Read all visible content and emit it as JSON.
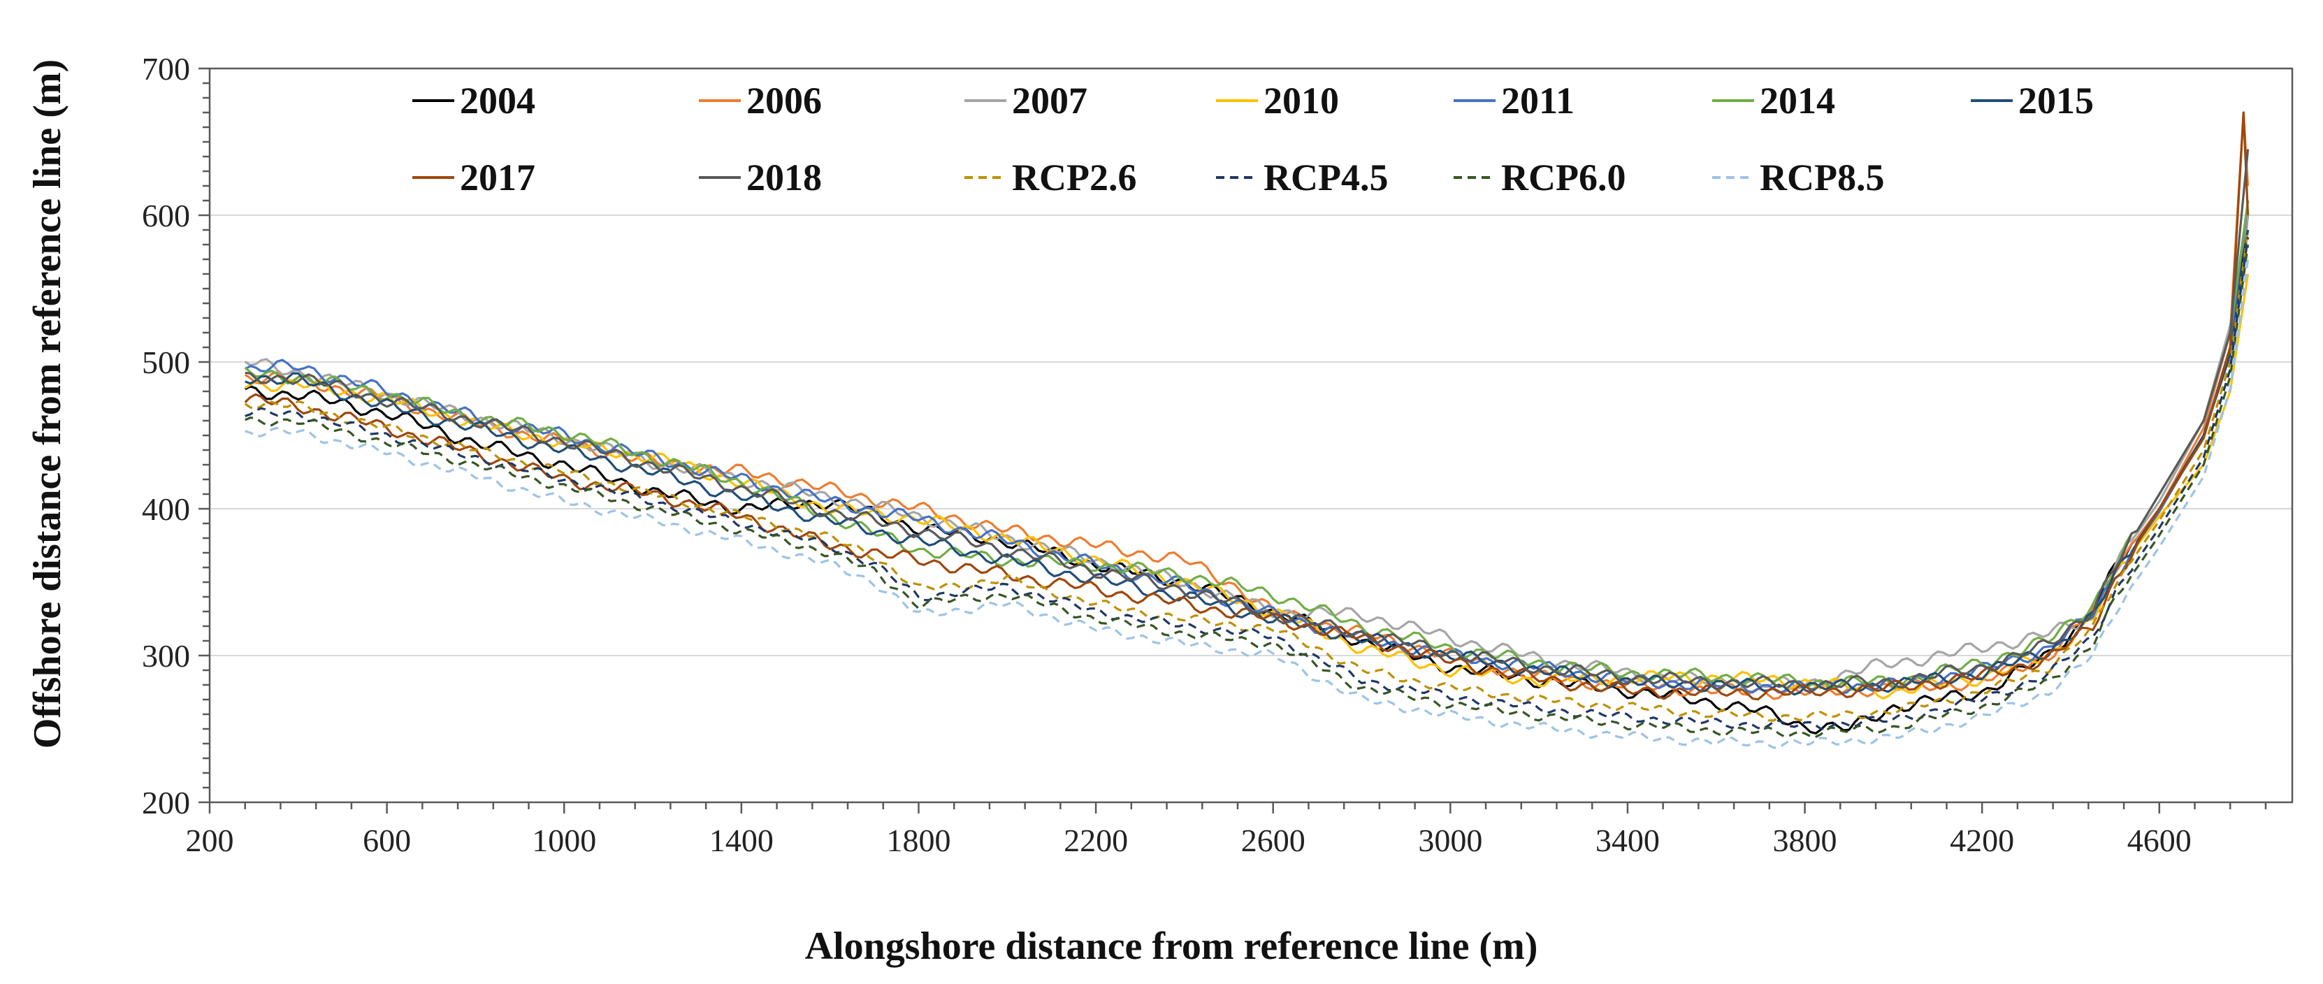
{
  "chart_data": {
    "type": "line",
    "title": "",
    "xlabel": "Alongshore distance from reference line (m)",
    "ylabel": "Offshore distance from reference line (m)",
    "xlim": [
      200,
      4900
    ],
    "ylim": [
      200,
      700
    ],
    "xticks": [
      200,
      600,
      1000,
      1400,
      1800,
      2200,
      2600,
      3000,
      3400,
      3800,
      4200,
      4600
    ],
    "yticks": [
      200,
      300,
      400,
      500,
      600,
      700
    ],
    "grid": "horizontal",
    "legend_position": "top, inside plot",
    "series": [
      {
        "name": "2004",
        "color": "#000000",
        "dash": "solid",
        "x": [
          280,
          400,
          600,
          800,
          1000,
          1200,
          1400,
          1600,
          1800,
          2000,
          2200,
          2400,
          2600,
          2800,
          3000,
          3200,
          3400,
          3600,
          3700,
          3800,
          3900,
          4000,
          4200,
          4350,
          4450,
          4500,
          4600,
          4700,
          4760,
          4800
        ],
        "y": [
          480,
          478,
          465,
          445,
          430,
          412,
          400,
          405,
          387,
          378,
          362,
          350,
          330,
          310,
          292,
          283,
          276,
          268,
          262,
          252,
          250,
          265,
          275,
          300,
          330,
          360,
          400,
          450,
          510,
          600
        ]
      },
      {
        "name": "2006",
        "color": "#ED7D31",
        "dash": "solid",
        "x": [
          280,
          400,
          600,
          800,
          1000,
          1200,
          1400,
          1500,
          1600,
          1800,
          2000,
          2200,
          2400,
          2500,
          2600,
          2800,
          3000,
          3200,
          3400,
          3600,
          3800,
          4000,
          4200,
          4350,
          4450,
          4500,
          4600,
          4700,
          4760,
          4790,
          4800
        ],
        "y": [
          490,
          488,
          475,
          458,
          445,
          432,
          425,
          420,
          413,
          400,
          385,
          375,
          365,
          350,
          330,
          315,
          300,
          285,
          280,
          276,
          275,
          278,
          282,
          300,
          330,
          360,
          400,
          455,
          520,
          670,
          620
        ]
      },
      {
        "name": "2007",
        "color": "#A5A5A5",
        "dash": "solid",
        "x": [
          280,
          400,
          600,
          800,
          1000,
          1200,
          1400,
          1600,
          1800,
          2000,
          2200,
          2400,
          2600,
          2800,
          3000,
          3200,
          3400,
          3600,
          3800,
          3950,
          4100,
          4200,
          4350,
          4450,
          4500,
          4600,
          4700,
          4760,
          4800
        ],
        "y": [
          500,
          493,
          478,
          462,
          448,
          432,
          420,
          408,
          395,
          380,
          365,
          350,
          330,
          328,
          312,
          298,
          288,
          282,
          280,
          292,
          300,
          305,
          315,
          325,
          362,
          405,
          460,
          525,
          600
        ]
      },
      {
        "name": "2010",
        "color": "#FFC000",
        "dash": "solid",
        "x": [
          280,
          400,
          600,
          800,
          1000,
          1200,
          1400,
          1600,
          1800,
          2000,
          2200,
          2400,
          2600,
          2800,
          3000,
          3200,
          3400,
          3600,
          3800,
          4000,
          4200,
          4350,
          4450,
          4500,
          4600,
          4700,
          4760,
          4800
        ],
        "y": [
          485,
          485,
          475,
          458,
          445,
          435,
          418,
          400,
          393,
          380,
          365,
          350,
          330,
          305,
          290,
          283,
          285,
          285,
          282,
          275,
          285,
          300,
          325,
          355,
          395,
          430,
          480,
          560
        ]
      },
      {
        "name": "2011",
        "color": "#4472C4",
        "dash": "solid",
        "x": [
          280,
          400,
          600,
          800,
          1000,
          1200,
          1400,
          1600,
          1800,
          2000,
          2200,
          2400,
          2600,
          2800,
          3000,
          3200,
          3400,
          3600,
          3800,
          4000,
          4200,
          4350,
          4450,
          4500,
          4600,
          4700,
          4760,
          4800
        ],
        "y": [
          495,
          497,
          480,
          462,
          450,
          435,
          420,
          405,
          393,
          378,
          362,
          348,
          328,
          312,
          300,
          292,
          283,
          280,
          278,
          280,
          290,
          305,
          328,
          355,
          398,
          450,
          510,
          610
        ]
      },
      {
        "name": "2014",
        "color": "#70AD47",
        "dash": "solid",
        "x": [
          280,
          400,
          600,
          800,
          1000,
          1200,
          1400,
          1600,
          1800,
          2000,
          2200,
          2400,
          2600,
          2800,
          3000,
          3200,
          3400,
          3600,
          3800,
          4000,
          4200,
          4350,
          4450,
          4500,
          4600,
          4700,
          4760,
          4800
        ],
        "y": [
          492,
          490,
          478,
          462,
          452,
          435,
          418,
          395,
          372,
          365,
          362,
          355,
          342,
          320,
          305,
          295,
          288,
          286,
          282,
          282,
          295,
          310,
          335,
          360,
          410,
          460,
          520,
          610
        ]
      },
      {
        "name": "2015",
        "color": "#1F4E79",
        "dash": "solid",
        "x": [
          280,
          400,
          600,
          800,
          1000,
          1200,
          1400,
          1600,
          1800,
          2000,
          2200,
          2400,
          2600,
          2800,
          3000,
          3200,
          3400,
          3600,
          3800,
          4000,
          4200,
          4350,
          4450,
          4500,
          4600,
          4700,
          4760,
          4800
        ],
        "y": [
          490,
          488,
          470,
          455,
          440,
          425,
          408,
          392,
          378,
          365,
          352,
          340,
          325,
          312,
          300,
          290,
          282,
          280,
          278,
          280,
          288,
          303,
          326,
          355,
          400,
          450,
          505,
          590
        ]
      },
      {
        "name": "2017",
        "color": "#9E480E",
        "dash": "solid",
        "x": [
          280,
          400,
          600,
          800,
          1000,
          1200,
          1400,
          1600,
          1800,
          2000,
          2200,
          2400,
          2600,
          2800,
          3000,
          3200,
          3400,
          3600,
          3800,
          4000,
          4200,
          4350,
          4450,
          4500,
          4600,
          4700,
          4760,
          4790,
          4800
        ],
        "y": [
          475,
          470,
          455,
          438,
          420,
          410,
          395,
          375,
          365,
          355,
          345,
          335,
          325,
          312,
          296,
          284,
          276,
          275,
          275,
          278,
          286,
          298,
          320,
          352,
          400,
          448,
          510,
          670,
          600
        ]
      },
      {
        "name": "2018",
        "color": "#595959",
        "dash": "solid",
        "x": [
          280,
          400,
          600,
          800,
          1000,
          1200,
          1400,
          1600,
          1800,
          2000,
          2200,
          2400,
          2600,
          2800,
          3000,
          3200,
          3400,
          3600,
          3800,
          4000,
          4200,
          4350,
          4450,
          4500,
          4600,
          4700,
          4760,
          4800
        ],
        "y": [
          488,
          490,
          474,
          460,
          446,
          430,
          414,
          398,
          385,
          372,
          358,
          345,
          328,
          315,
          302,
          292,
          285,
          282,
          280,
          282,
          292,
          307,
          332,
          360,
          410,
          460,
          520,
          645
        ]
      },
      {
        "name": "RCP2.6",
        "color": "#BF9000",
        "dash": "dashed",
        "x": [
          280,
          400,
          600,
          800,
          1000,
          1200,
          1400,
          1600,
          1700,
          1800,
          2000,
          2200,
          2400,
          2600,
          2700,
          2800,
          3000,
          3200,
          3400,
          3600,
          3800,
          4000,
          4200,
          4350,
          4450,
          4500,
          4600,
          4700,
          4760,
          4800
        ],
        "y": [
          472,
          470,
          455,
          440,
          425,
          410,
          395,
          380,
          368,
          345,
          352,
          335,
          325,
          318,
          305,
          290,
          278,
          270,
          265,
          260,
          258,
          262,
          275,
          292,
          318,
          348,
          392,
          440,
          500,
          590
        ]
      },
      {
        "name": "RCP4.5",
        "color": "#203864",
        "dash": "dashed",
        "x": [
          280,
          400,
          600,
          800,
          1000,
          1200,
          1400,
          1600,
          1700,
          1800,
          2000,
          2200,
          2400,
          2600,
          2700,
          2800,
          3000,
          3200,
          3400,
          3600,
          3800,
          4000,
          4200,
          4350,
          4450,
          4500,
          4600,
          4700,
          4760,
          4800
        ],
        "y": [
          465,
          465,
          450,
          435,
          420,
          405,
          390,
          375,
          362,
          340,
          347,
          330,
          320,
          313,
          298,
          283,
          272,
          264,
          258,
          254,
          252,
          256,
          270,
          287,
          313,
          343,
          387,
          435,
          495,
          585
        ]
      },
      {
        "name": "RCP6.0",
        "color": "#375623",
        "dash": "dashed",
        "x": [
          280,
          400,
          600,
          800,
          1000,
          1200,
          1400,
          1600,
          1700,
          1800,
          2000,
          2200,
          2400,
          2600,
          2700,
          2800,
          3000,
          3200,
          3400,
          3600,
          3800,
          4000,
          4200,
          4350,
          4450,
          4500,
          4600,
          4700,
          4760,
          4800
        ],
        "y": [
          460,
          460,
          445,
          430,
          415,
          400,
          385,
          370,
          357,
          335,
          342,
          325,
          315,
          308,
          293,
          278,
          267,
          259,
          253,
          249,
          247,
          251,
          265,
          282,
          308,
          338,
          382,
          430,
          490,
          580
        ]
      },
      {
        "name": "RCP8.5",
        "color": "#9DC3E6",
        "dash": "dashed",
        "x": [
          280,
          400,
          600,
          800,
          1000,
          1200,
          1400,
          1600,
          1700,
          1800,
          2000,
          2200,
          2400,
          2600,
          2700,
          2800,
          3000,
          3200,
          3400,
          3600,
          3800,
          4000,
          4200,
          4350,
          4450,
          4500,
          4600,
          4700,
          4760,
          4800
        ],
        "y": [
          452,
          452,
          438,
          422,
          405,
          392,
          378,
          362,
          350,
          328,
          335,
          318,
          308,
          300,
          285,
          270,
          259,
          251,
          245,
          241,
          240,
          244,
          258,
          275,
          300,
          330,
          374,
          422,
          482,
          570
        ]
      }
    ]
  }
}
